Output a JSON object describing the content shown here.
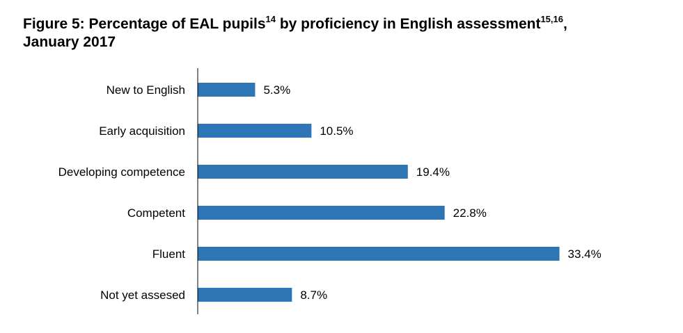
{
  "title": {
    "text_a": "Figure 5: Percentage of EAL pupils",
    "sup_a": "14",
    "text_b": " by proficiency in English assessment",
    "sup_b": "15,16",
    "text_c": ",",
    "line2": "January 2017"
  },
  "colors": {
    "bar": "#2E75B6",
    "axis": "#000000"
  },
  "chart_data": {
    "type": "bar",
    "orientation": "horizontal",
    "categories": [
      "New to English",
      "Early acquisition",
      "Developing competence",
      "Competent",
      "Fluent",
      "Not yet assesed"
    ],
    "values": [
      5.3,
      10.5,
      19.4,
      22.8,
      33.4,
      8.7
    ],
    "data_labels": [
      "5.3%",
      "10.5%",
      "19.4%",
      "22.8%",
      "33.4%",
      "8.7%"
    ],
    "xlim": [
      0,
      36
    ],
    "grid": false,
    "legend": "none"
  }
}
